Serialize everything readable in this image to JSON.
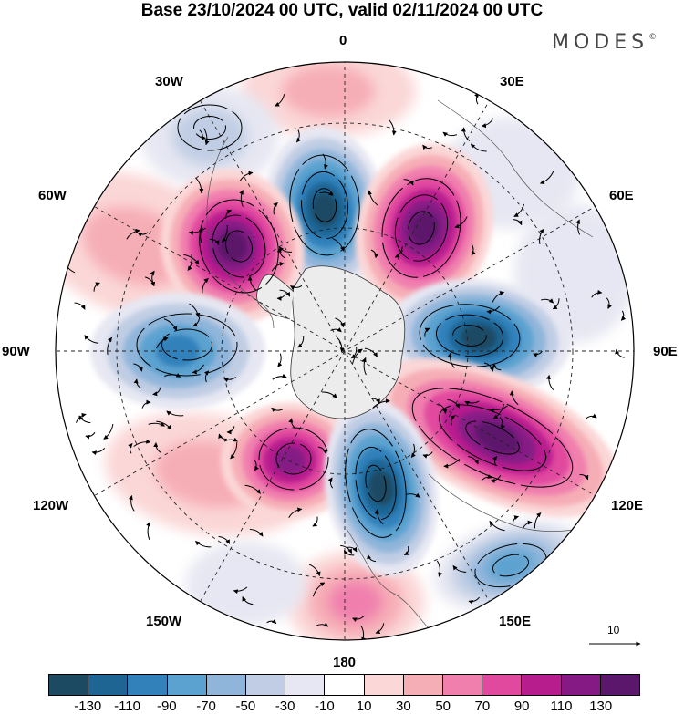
{
  "title": "Base 23/10/2024 00 UTC, valid 02/11/2024 00 UTC",
  "brand": {
    "name": "MODES",
    "mark": "©"
  },
  "map": {
    "projection": "south-polar-stereographic",
    "meridian_labels": {
      "m0": "0",
      "m30e": "30E",
      "m60e": "60E",
      "m90e": "90E",
      "m120e": "120E",
      "m150e": "150E",
      "m180": "180",
      "m150w": "150W",
      "m120w": "120W",
      "m90w": "90W",
      "m60w": "60W",
      "m30w": "30W"
    },
    "reference_vector": {
      "value": "10"
    }
  },
  "colorbar": {
    "labels": [
      "-130",
      "-110",
      "-90",
      "-70",
      "-50",
      "-30",
      "-10",
      "10",
      "30",
      "50",
      "70",
      "90",
      "110",
      "130"
    ],
    "colors": [
      "#1c4a63",
      "#1f6594",
      "#3281bb",
      "#5ba2d0",
      "#8fb5da",
      "#c0cde4",
      "#e6e7f2",
      "#ffffff",
      "#fbd7d7",
      "#f6aeb6",
      "#f07fae",
      "#e1499f",
      "#b81d8e",
      "#851a85",
      "#5b176b"
    ]
  }
}
